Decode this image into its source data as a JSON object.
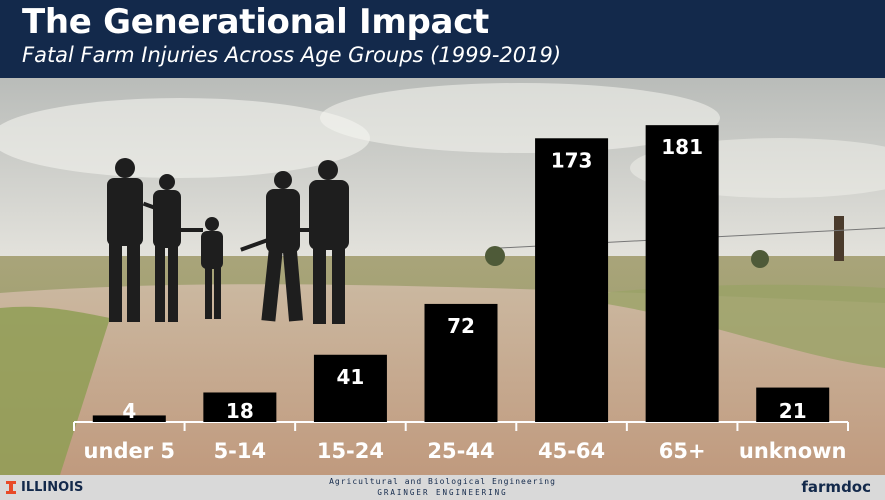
{
  "header": {
    "title": "The Generational Impact",
    "subtitle": "Fatal Farm Injuries Across Age Groups (1999-2019)"
  },
  "footer": {
    "left_brand": "ILLINOIS",
    "center_line1": "Agricultural and Biological Engineering",
    "center_line2": "GRAINGER ENGINEERING",
    "right_brand": "farmdoc"
  },
  "chart_data": {
    "type": "bar",
    "title": "Fatal Farm Injuries Across Age Groups (1999-2019)",
    "categories": [
      "under 5",
      "5-14",
      "15-24",
      "25-44",
      "45-64",
      "65+",
      "unknown"
    ],
    "values": [
      4,
      18,
      41,
      72,
      173,
      181,
      21
    ],
    "xlabel": "",
    "ylabel": "",
    "ylim": [
      0,
      200
    ],
    "grid": false,
    "data_labels": true
  },
  "colors": {
    "header_bg": "#13294b",
    "bar": "#000000",
    "label": "#ffffff",
    "footer_bg": "#d9d9d9",
    "illinois_orange": "#e84a27"
  }
}
